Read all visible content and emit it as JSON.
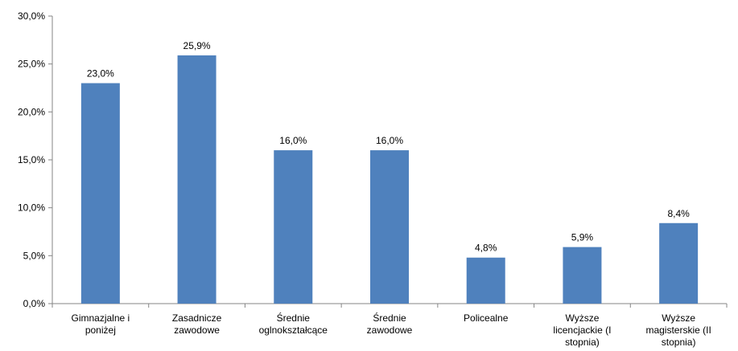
{
  "chart_data": {
    "type": "bar",
    "categories": [
      "Gimnazjalne  i\nponiżej",
      "Zasadnicze\nzawodowe",
      "Średnie\noglnokształcące",
      "Średnie\nzawodowe",
      "Policealne",
      "Wyższe\nlicencjackie (I\nstopnia)",
      "Wyższe\nmagisterskie (II\nstopnia)"
    ],
    "values": [
      23.0,
      25.9,
      16.0,
      16.0,
      4.8,
      5.9,
      8.4
    ],
    "value_labels": [
      "23,0%",
      "25,9%",
      "16,0%",
      "16,0%",
      "4,8%",
      "5,9%",
      "8,4%"
    ],
    "color": "#4f81bd",
    "ylim": [
      0,
      30
    ],
    "yticks": [
      {
        "value": 0,
        "label": "0,0%"
      },
      {
        "value": 5,
        "label": "5,0%"
      },
      {
        "value": 10,
        "label": "10,0%"
      },
      {
        "value": 15,
        "label": "15,0%"
      },
      {
        "value": 20,
        "label": "20,0%"
      },
      {
        "value": 25,
        "label": "25,0%"
      },
      {
        "value": 30,
        "label": "30,0%"
      }
    ],
    "grid": false
  }
}
